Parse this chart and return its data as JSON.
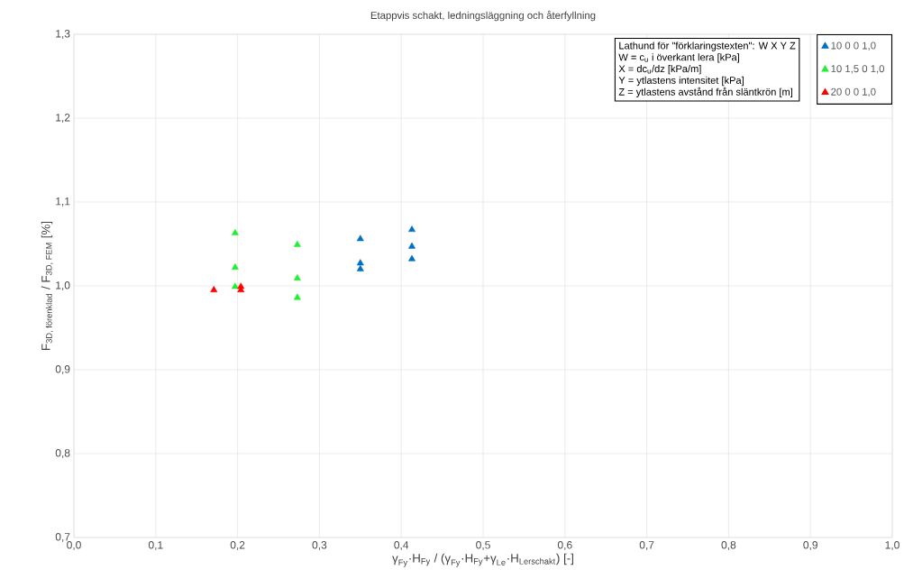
{
  "chart_data": {
    "type": "scatter",
    "title": "Etappvis schakt, ledningsläggning och återfyllning",
    "xlabel": "\\text{γ}_{\\text{Fy}}\\text{·H}_{\\text{Fy}}\\text{ / (γ}_{\\text{Fy}}\\text{·H}_{\\text{Fy}}\\text{+γ}_{\\text{Le}}\\text{·H}_{\\text{Lerschakt}}\\text{) [-]}",
    "ylabel": "\\text{F}_{\\text{3D, förenklad}}\\text{ / F}_{\\text{3D, FEM}}\\text{ [\\%]}",
    "annotations": [
      "Lathund för \"förklaringstexten\": W X Y Z",
      "W = c$_{u}$ i överkant lera [kPa]",
      "X = dc$_{u}$/dz [kPa/m]",
      "Y = ytlastens intensitet [kPa]",
      "Z = ytlastens avstånd från släntkrön [m]"
    ],
    "xlim": [
      0,
      1
    ],
    "ylim": [
      0.7,
      1.3
    ],
    "xticks": [
      {
        "value": 0,
        "label": "0,0"
      },
      {
        "value": 0.1,
        "label": "0,1"
      },
      {
        "value": 0.2,
        "label": "0,2"
      },
      {
        "value": 0.3,
        "label": "0,3"
      },
      {
        "value": 0.4,
        "label": "0,4"
      },
      {
        "value": 0.5,
        "label": "0,5"
      },
      {
        "value": 0.6,
        "label": "0,6"
      },
      {
        "value": 0.7,
        "label": "0,7"
      },
      {
        "value": 0.8,
        "label": "0,8"
      },
      {
        "value": 0.9,
        "label": "0,9"
      },
      {
        "value": 1,
        "label": "1,0"
      }
    ],
    "yticks": [
      {
        "value": 0.7,
        "label": "0,7"
      },
      {
        "value": 0.8,
        "label": "0,8"
      },
      {
        "value": 0.9,
        "label": "0,9"
      },
      {
        "value": 1.0,
        "label": "1,0"
      },
      {
        "value": 1.1,
        "label": "1,1"
      },
      {
        "value": 1.2,
        "label": "1,2"
      },
      {
        "value": 1.3,
        "label": "1,3"
      }
    ],
    "grid": true,
    "legend": "top right",
    "marker": "triangle",
    "series": [
      {
        "name": "10 0 0 1,0",
        "color": "#0070c0",
        "x": [
          0.35,
          0.35,
          0.35,
          0.413,
          0.413,
          0.413
        ],
        "values": [
          1.056,
          1.027,
          1.02,
          1.067,
          1.047,
          1.032
        ]
      },
      {
        "name": "10 1,5 0 1,0",
        "color": "#22ee33",
        "x": [
          0.197,
          0.197,
          0.197,
          0.273,
          0.273,
          0.273
        ],
        "values": [
          1.063,
          1.022,
          0.999,
          1.049,
          1.009,
          0.986
        ]
      },
      {
        "name": "20 0 0 1,0",
        "color": "#ff0000",
        "x": [
          0.171,
          0.204,
          0.204
        ],
        "values": [
          0.995,
          0.999,
          0.995
        ]
      }
    ]
  }
}
